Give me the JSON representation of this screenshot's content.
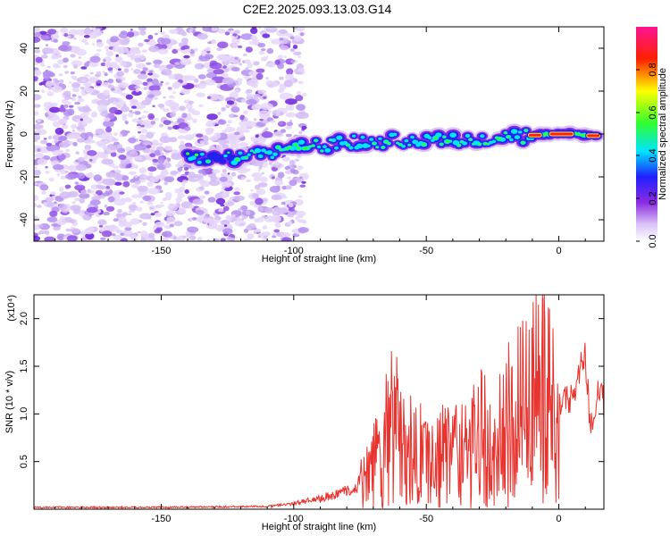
{
  "title": "C2E2.2025.093.13.03.G14",
  "chart_data": [
    {
      "type": "heatmap",
      "name": "spectrogram",
      "xlabel": "Height of straight line (km)",
      "ylabel": "Frequency (Hz)",
      "xlim": [
        -198,
        17
      ],
      "ylim": [
        -50,
        50
      ],
      "xticks": [
        -150,
        -100,
        -50,
        0
      ],
      "yticks": [
        -40,
        -20,
        0,
        20,
        40
      ],
      "colorbar": {
        "label": "Normalized spectral amplitude",
        "range": [
          0.0,
          1.0
        ],
        "ticks": [
          0.0,
          0.2,
          0.4,
          0.6,
          0.8
        ],
        "colormap": "rainbow (white→violet→blue→cyan→green→yellow→red→magenta)",
        "stops": [
          "#ffffff",
          "#d9c2f7",
          "#8a2be2",
          "#2020ff",
          "#00e5ff",
          "#30ff30",
          "#ffff00",
          "#ff2000",
          "#ff1493"
        ]
      },
      "ridge": {
        "description": "dominant frequency track vs height",
        "x": [
          -140,
          -120,
          -100,
          -80,
          -60,
          -40,
          -20,
          -5,
          5,
          15
        ],
        "y": [
          -12,
          -11,
          -7,
          -4,
          -3,
          -3,
          -2,
          0,
          0,
          -1
        ]
      },
      "noise_region": {
        "x": [
          -198,
          -100
        ],
        "y": [
          -50,
          50
        ]
      }
    },
    {
      "type": "line",
      "name": "snr",
      "xlabel": "Height of straight line (km)",
      "ylabel": "SNR (10 * v/v)",
      "y_multiplier": "(x10⁴)",
      "xlim": [
        -198,
        17
      ],
      "ylim": [
        0,
        2.25
      ],
      "xticks": [
        -150,
        -100,
        -50,
        0
      ],
      "yticks": [
        0.5,
        1.0,
        1.5,
        2.0
      ],
      "ytick_labels": [
        "0.5",
        "1.0",
        "1.5",
        "2.0"
      ],
      "series": [
        {
          "name": "SNR",
          "color": "#e8332e",
          "x": [
            -198,
            -150,
            -110,
            -100,
            -90,
            -80,
            -75,
            -70,
            -65,
            -62,
            -58,
            -55,
            -50,
            -45,
            -40,
            -35,
            -30,
            -28,
            -25,
            -20,
            -15,
            -10,
            -8,
            -6,
            -5,
            -3,
            0,
            3,
            6,
            8,
            10,
            12,
            15,
            17
          ],
          "y": [
            0.02,
            0.02,
            0.03,
            0.06,
            0.12,
            0.2,
            0.28,
            0.5,
            0.85,
            0.97,
            0.6,
            0.75,
            0.55,
            0.65,
            0.62,
            0.72,
            0.8,
            0.92,
            0.65,
            0.95,
            1.2,
            1.3,
            1.5,
            2.2,
            1.4,
            1.3,
            1.1,
            1.15,
            1.2,
            1.45,
            1.6,
            0.8,
            1.3,
            1.1
          ]
        }
      ]
    }
  ]
}
